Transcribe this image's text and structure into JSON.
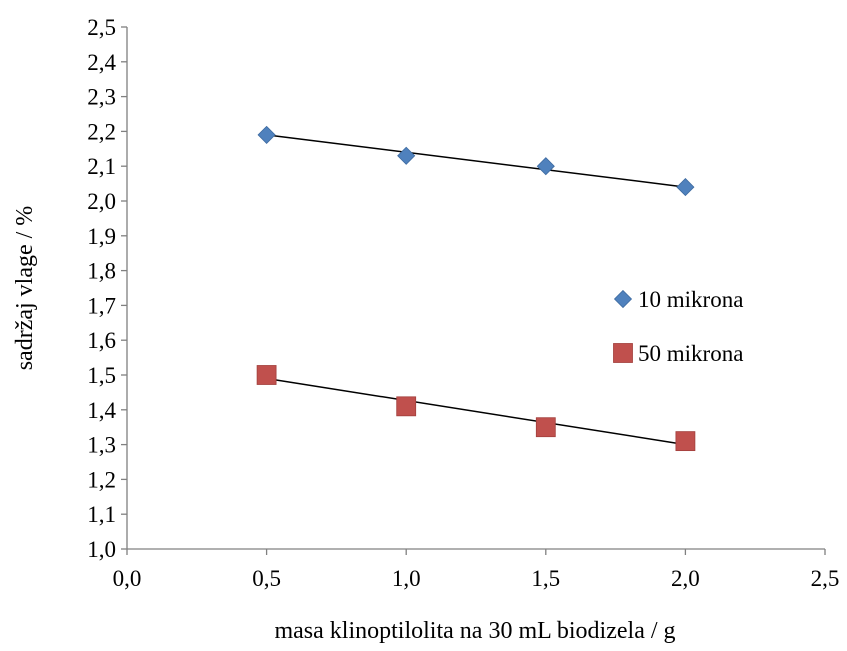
{
  "chart_data": {
    "type": "scatter",
    "title": "",
    "xlabel": "masa klinoptilolita na 30 mL biodizela / g",
    "ylabel": "sadržaj vlage  /  %",
    "xlim": [
      0.0,
      2.5
    ],
    "ylim": [
      1.0,
      2.5
    ],
    "x_ticks": [
      "0,0",
      "0,5",
      "1,0",
      "1,5",
      "2,0",
      "2,5"
    ],
    "y_ticks": [
      "1,0",
      "1,1",
      "1,2",
      "1,3",
      "1,4",
      "1,5",
      "1,6",
      "1,7",
      "1,8",
      "1,9",
      "2,0",
      "2,1",
      "2,2",
      "2,3",
      "2,4",
      "2,5"
    ],
    "grid": false,
    "legend_position": "right",
    "series": [
      {
        "name": "10 mikrona",
        "marker": "diamond",
        "color": "#4F81BD",
        "x": [
          0.5,
          1.0,
          1.5,
          2.0
        ],
        "y": [
          2.19,
          2.13,
          2.1,
          2.04
        ],
        "trendline": [
          [
            0.5,
            2.19
          ],
          [
            2.0,
            2.04
          ]
        ]
      },
      {
        "name": "50 mikrona",
        "marker": "square",
        "color": "#C0504D",
        "x": [
          0.5,
          1.0,
          1.5,
          2.0
        ],
        "y": [
          1.5,
          1.41,
          1.35,
          1.31
        ],
        "trendline": [
          [
            0.5,
            1.49
          ],
          [
            2.0,
            1.3
          ]
        ]
      }
    ]
  }
}
